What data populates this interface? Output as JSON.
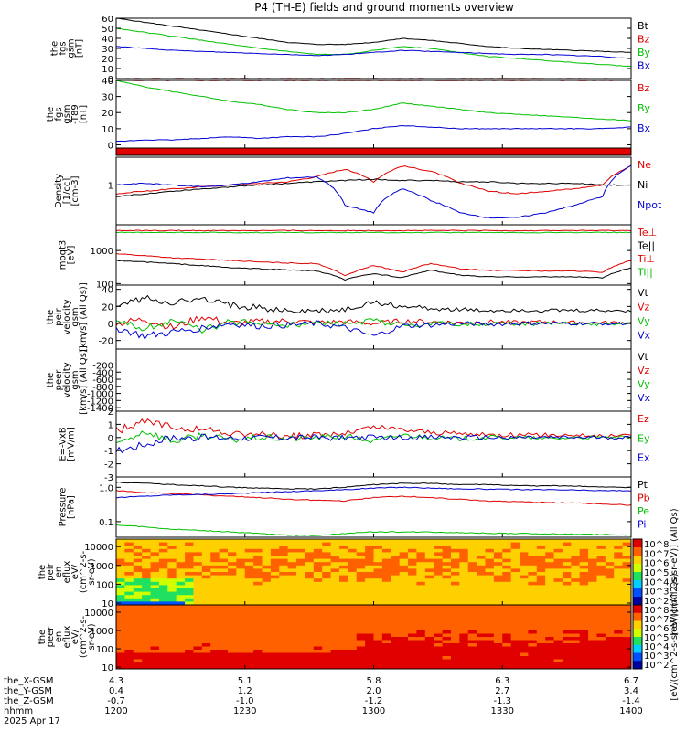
{
  "title": "P4 (TH-E) fields and ground moments overview",
  "chart_data": [
    {
      "id": "fgs_gsm",
      "type": "line",
      "ylabel": [
        "the",
        "fgs",
        "gsm",
        "[nT]"
      ],
      "ylim": [
        0,
        60
      ],
      "yticks": [
        "60",
        "50",
        "40",
        "30",
        "20",
        "10",
        "0"
      ],
      "series": [
        {
          "name": "Bt",
          "color": "#000000",
          "values": [
            60,
            56,
            52,
            48,
            44,
            40,
            36,
            34,
            34,
            36,
            40,
            38,
            35,
            32,
            30,
            29,
            28,
            27,
            26
          ]
        },
        {
          "name": "Bz",
          "color": "#e00000",
          "values": [
            0,
            0,
            0,
            0,
            0,
            0,
            0,
            0,
            0,
            0,
            0,
            0,
            0,
            0,
            0,
            0,
            0,
            0,
            0
          ]
        },
        {
          "name": "By",
          "color": "#00c000",
          "values": [
            50,
            46,
            42,
            38,
            34,
            30,
            27,
            24,
            24,
            28,
            32,
            30,
            26,
            22,
            20,
            18,
            16,
            14,
            12
          ]
        },
        {
          "name": "Bx",
          "color": "#0000d0",
          "values": [
            32,
            30,
            28,
            27,
            26,
            25,
            24,
            23,
            24,
            26,
            28,
            27,
            26,
            25,
            24,
            24,
            23,
            22,
            20
          ]
        }
      ]
    },
    {
      "id": "fgs_gsm_t89",
      "type": "line",
      "ylabel": [
        "the",
        "fgs",
        "gsm",
        "-T89",
        "[nT]"
      ],
      "ylim": [
        -2,
        40
      ],
      "yticks": [
        "40",
        "30",
        "20",
        "10",
        "0"
      ],
      "series": [
        {
          "name": "Bz",
          "color": "#e00000",
          "values": [
            40,
            40,
            40,
            40,
            40,
            40,
            40,
            40,
            40,
            40,
            40,
            40,
            40,
            40,
            40,
            40,
            40,
            40,
            40
          ]
        },
        {
          "name": "By",
          "color": "#00c000",
          "values": [
            40,
            36,
            33,
            30,
            27,
            25,
            22,
            20,
            20,
            22,
            26,
            24,
            22,
            20,
            19,
            18,
            17,
            16,
            15
          ]
        },
        {
          "name": "Bx",
          "color": "#0000d0",
          "values": [
            2,
            3,
            3,
            4,
            5,
            4,
            5,
            5,
            7,
            10,
            12,
            11,
            10,
            10,
            10,
            10,
            10,
            10,
            11
          ]
        }
      ]
    },
    {
      "id": "red_band",
      "type": "line",
      "ylabel": [],
      "series": []
    },
    {
      "id": "density",
      "type": "line",
      "ylabel": [
        "Density",
        "[1/cc]",
        "[cm-3]"
      ],
      "yscale": "log",
      "ylim": [
        0.1,
        5
      ],
      "yticks": [
        "1"
      ],
      "series": [
        {
          "name": "Ne",
          "color": "#e00000",
          "values": [
            0.6,
            0.7,
            0.8,
            0.9,
            1.0,
            1.1,
            1.2,
            1.6,
            2.5,
            1.2,
            3.0,
            2.2,
            1.1,
            0.7,
            0.6,
            0.7,
            0.8,
            1.0,
            3.0
          ]
        },
        {
          "name": "Ni",
          "color": "#000000",
          "values": [
            0.5,
            0.6,
            0.7,
            0.8,
            0.9,
            1.0,
            1.1,
            1.2,
            1.3,
            1.4,
            1.3,
            1.3,
            1.2,
            1.2,
            1.1,
            1.1,
            1.1,
            1.0,
            1.0
          ]
        },
        {
          "name": "Npot",
          "color": "#0000d0",
          "values": [
            1.0,
            1.1,
            1.0,
            0.9,
            1.0,
            1.2,
            1.5,
            1.6,
            0.3,
            0.2,
            0.8,
            0.4,
            0.2,
            0.15,
            0.15,
            0.2,
            0.3,
            0.5,
            3.0
          ]
        }
      ]
    },
    {
      "id": "temperature",
      "type": "line",
      "ylabel": [
        "moqt3",
        "[eV]"
      ],
      "yscale": "log",
      "ylim": [
        90,
        6000
      ],
      "yticks": [
        "1000",
        "100"
      ],
      "series": [
        {
          "name": "Te⊥",
          "color": "#e00000",
          "values": [
            4000,
            4000,
            4000,
            4000,
            4000,
            4000,
            4000,
            4000,
            4000,
            4000,
            4000,
            4000,
            4000,
            4000,
            4000,
            4000,
            4000,
            4000,
            4000
          ]
        },
        {
          "name": "Te||",
          "color": "#000000",
          "values": [
            500,
            450,
            400,
            350,
            300,
            280,
            260,
            240,
            130,
            200,
            150,
            250,
            180,
            160,
            160,
            160,
            160,
            150,
            300
          ]
        },
        {
          "name": "Ti⊥",
          "color": "#e00000",
          "values": [
            800,
            700,
            600,
            550,
            500,
            450,
            420,
            400,
            170,
            350,
            220,
            400,
            280,
            250,
            250,
            240,
            240,
            220,
            500
          ]
        },
        {
          "name": "Ti||",
          "color": "#00c000",
          "values": [
            3500,
            3500,
            3500,
            3500,
            3500,
            3500,
            3500,
            3500,
            3500,
            3500,
            3500,
            3500,
            3500,
            3500,
            3500,
            3500,
            3500,
            3500,
            3500
          ]
        }
      ]
    },
    {
      "id": "peir_velocity",
      "type": "line",
      "ylabel": [
        "the",
        "peir",
        "velocity",
        "gsm",
        "[km/s] (All Qs)]"
      ],
      "ylim": [
        -30,
        45
      ],
      "yticks": [
        "40",
        "20",
        "0",
        "-20"
      ],
      "series": [
        {
          "name": "Vt",
          "color": "#000000",
          "values": [
            20,
            30,
            25,
            28,
            22,
            18,
            15,
            14,
            16,
            25,
            20,
            18,
            16,
            15,
            16,
            15,
            15,
            15,
            15
          ]
        },
        {
          "name": "Vz",
          "color": "#e00000",
          "values": [
            0,
            5,
            -5,
            8,
            0,
            2,
            3,
            1,
            2,
            0,
            3,
            2,
            1,
            2,
            1,
            2,
            1,
            1,
            1
          ]
        },
        {
          "name": "Vy",
          "color": "#00c000",
          "values": [
            0,
            -5,
            3,
            -8,
            2,
            0,
            -2,
            0,
            -1,
            3,
            -2,
            0,
            -1,
            0,
            -1,
            0,
            0,
            -1,
            0
          ]
        },
        {
          "name": "Vx",
          "color": "#0000d0",
          "values": [
            -5,
            -15,
            -10,
            -5,
            0,
            -3,
            -2,
            0,
            -5,
            -15,
            -3,
            -2,
            0,
            -1,
            0,
            0,
            0,
            0,
            0
          ]
        }
      ]
    },
    {
      "id": "peer_velocity",
      "type": "line",
      "ylabel": [
        "the",
        "peer",
        "velocity",
        "gsm",
        "[km/s] (All Qs)]"
      ],
      "ylim": [
        -1500,
        250
      ],
      "yticks": [
        "-200",
        "-400",
        "-600",
        "-800",
        "-1000",
        "-1200",
        "-1400"
      ],
      "series": [
        {
          "name": "Vt",
          "color": "#000000",
          "values": []
        },
        {
          "name": "Vz",
          "color": "#e00000",
          "values": []
        },
        {
          "name": "Vy",
          "color": "#00c000",
          "values": []
        },
        {
          "name": "Vx",
          "color": "#0000d0",
          "values": []
        }
      ]
    },
    {
      "id": "efield",
      "type": "line",
      "ylabel": [
        "E=-VxB",
        "[mV/m]"
      ],
      "ylim": [
        -3,
        2
      ],
      "yticks": [
        "2",
        "1",
        "0",
        "-1",
        "-2",
        "-3"
      ],
      "series": [
        {
          "name": "Ez",
          "color": "#e00000",
          "values": [
            0.5,
            1.2,
            0.8,
            0.6,
            0.3,
            0.2,
            0.1,
            0.2,
            0.3,
            0.8,
            0.6,
            0.4,
            0.3,
            0.2,
            0.2,
            0.2,
            0.2,
            0.1,
            0.2
          ]
        },
        {
          "name": "Ey",
          "color": "#00c000",
          "values": [
            -0.5,
            0.5,
            -0.3,
            0.2,
            -0.2,
            0.0,
            -0.1,
            0.0,
            0.1,
            -0.3,
            0.2,
            0.0,
            -0.1,
            0.0,
            0.0,
            -0.1,
            0.0,
            0.0,
            0.0
          ]
        },
        {
          "name": "Ex",
          "color": "#0000d0",
          "values": [
            -1.0,
            -0.5,
            0.0,
            0.0,
            0.0,
            0.0,
            0.0,
            0.0,
            0.0,
            0.0,
            0.0,
            0.0,
            0.0,
            0.0,
            0.0,
            0.0,
            0.0,
            0.0,
            0.0
          ]
        }
      ]
    },
    {
      "id": "pressure",
      "type": "line",
      "ylabel": [
        "Pressure",
        "[nPa]"
      ],
      "yscale": "log",
      "ylim": [
        0.035,
        2
      ],
      "yticks": [
        "1.0",
        "0.1"
      ],
      "series": [
        {
          "name": "Pt",
          "color": "#000000",
          "values": [
            1.4,
            1.3,
            1.2,
            1.1,
            1.0,
            0.95,
            0.9,
            0.9,
            1.0,
            1.2,
            1.3,
            1.3,
            1.2,
            1.2,
            1.1,
            1.1,
            1.1,
            1.0,
            1.0
          ]
        },
        {
          "name": "Pb",
          "color": "#e00000",
          "values": [
            0.8,
            0.7,
            0.65,
            0.6,
            0.55,
            0.5,
            0.45,
            0.42,
            0.4,
            0.5,
            0.55,
            0.5,
            0.45,
            0.4,
            0.38,
            0.36,
            0.35,
            0.33,
            0.3
          ]
        },
        {
          "name": "Pe",
          "color": "#00c000",
          "values": [
            0.08,
            0.07,
            0.06,
            0.055,
            0.05,
            0.045,
            0.04,
            0.04,
            0.045,
            0.05,
            0.05,
            0.05,
            0.048,
            0.046,
            0.045,
            0.044,
            0.043,
            0.042,
            0.04
          ]
        },
        {
          "name": "Pi",
          "color": "#0000d0",
          "values": [
            0.5,
            0.55,
            0.6,
            0.62,
            0.65,
            0.7,
            0.75,
            0.8,
            0.85,
            0.95,
            1.0,
            0.95,
            0.9,
            0.88,
            0.86,
            0.85,
            0.83,
            0.8,
            0.8
          ]
        }
      ]
    },
    {
      "id": "peir_eflux",
      "type": "heatmap",
      "ylabel": [
        "the",
        "peir",
        "en",
        "eflux",
        "eV/",
        "(cm^2-s-",
        "sr-eV)"
      ],
      "yscale": "log",
      "ylim": [
        8,
        25000
      ],
      "yticks": [
        "10000",
        "1000",
        "100",
        "10"
      ],
      "colorbar": {
        "label": "[eV/(cm^2-s-sr-eV)] (All Qs)",
        "ticks": [
          "10^8",
          "10^7",
          "10^6",
          "10^5",
          "10^4",
          "10^3",
          "10^2"
        ]
      }
    },
    {
      "id": "peer_eflux",
      "type": "heatmap",
      "ylabel": [
        "the",
        "peer",
        "en",
        "eflux",
        "eV/",
        "(cm^2-s-",
        "sr-eV)"
      ],
      "yscale": "log",
      "ylim": [
        8,
        25000
      ],
      "yticks": [
        "10000",
        "1000",
        "100",
        "10"
      ],
      "colorbar": {
        "label": "[eV/(cm^2-s-sr-eV)] (All Qs)",
        "ticks": [
          "10^8",
          "10^7",
          "10^6",
          "10^5",
          "10^4",
          "10^3",
          "10^2"
        ]
      }
    }
  ],
  "footer": {
    "rows": [
      {
        "label": "the_X-GSM",
        "values": [
          "4.3",
          "5.1",
          "5.8",
          "6.3",
          "6.7"
        ]
      },
      {
        "label": "the_Y-GSM",
        "values": [
          "0.4",
          "1.2",
          "2.0",
          "2.7",
          "3.4"
        ]
      },
      {
        "label": "the_Z-GSM",
        "values": [
          "-0.7",
          "-1.0",
          "-1.2",
          "-1.3",
          "-1.4"
        ]
      },
      {
        "label": "hhmm",
        "values": [
          "1200",
          "1230",
          "1300",
          "1330",
          "1400"
        ]
      }
    ],
    "date": "2025 Apr 17"
  }
}
